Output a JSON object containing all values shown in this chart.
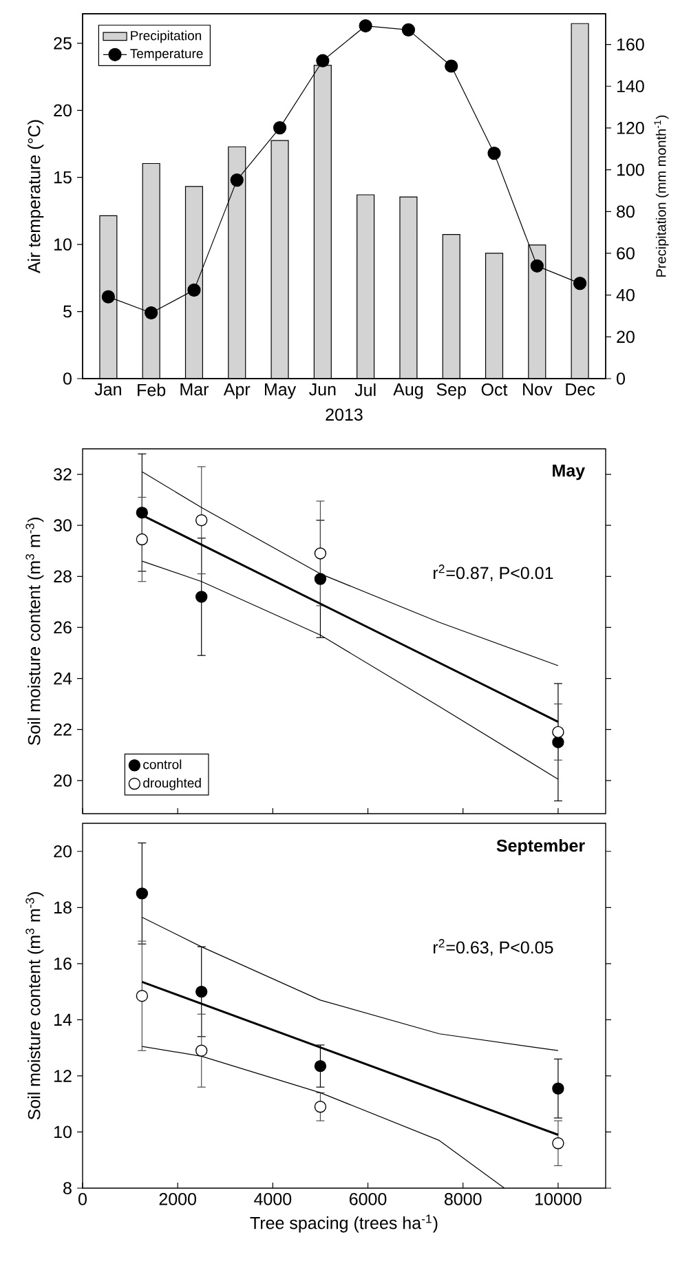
{
  "chart_data": [
    {
      "type": "bar",
      "xlabel": "2013",
      "ylabel": "Air temperature (°C)",
      "y2label": "Precipitation (mm month$^{-1}$)",
      "categories": [
        "Jan",
        "Feb",
        "Mar",
        "Apr",
        "May",
        "Jun",
        "Jul",
        "Aug",
        "Sep",
        "Oct",
        "Nov",
        "Dec"
      ],
      "series": [
        {
          "name": "Precipitation",
          "type": "bar",
          "axis": "y2",
          "color": "#d3d3d3",
          "values": [
            78,
            103,
            92,
            111,
            114,
            150,
            88,
            87,
            69,
            60,
            64,
            170
          ]
        },
        {
          "name": "Temperature",
          "type": "line",
          "color": "#000000",
          "marker": "circle",
          "values": [
            6.1,
            4.9,
            6.6,
            14.8,
            18.7,
            23.7,
            26.3,
            26.0,
            23.3,
            16.8,
            8.4,
            7.1
          ]
        }
      ],
      "ylim": [
        0,
        27.2
      ],
      "yticks": [
        0,
        5,
        10,
        15,
        20,
        25
      ],
      "y2lim": [
        0,
        174.7
      ],
      "y2ticks": [
        0,
        20,
        40,
        60,
        80,
        100,
        120,
        140,
        160
      ],
      "legend": "top left"
    },
    {
      "type": "scatter",
      "title": "May",
      "ylabel": "Soil moisture content (m$^{3}$ m$^{-3}$)",
      "annotations": [
        "r$^{2}$=0.87, P<0.01"
      ],
      "x": [
        1250,
        2500,
        5000,
        10000
      ],
      "series": [
        {
          "name": "control",
          "color": "#000000",
          "marker": "circle",
          "values": [
            30.5,
            27.2,
            27.9,
            21.5
          ],
          "errors": [
            2.3,
            2.3,
            2.3,
            2.3
          ]
        },
        {
          "name": "droughted",
          "color": "#ffffff",
          "marker": "circle",
          "values": [
            29.45,
            30.2,
            28.9,
            21.9
          ],
          "errors": [
            1.65,
            2.1,
            2.05,
            1.1
          ]
        },
        {
          "type": "line",
          "color": "#000000",
          "x": [
            1250,
            10000
          ],
          "values": [
            30.4,
            22.3
          ]
        },
        {
          "type": "line",
          "color": "#000000",
          "x": [
            1250,
            2500,
            5000,
            7500,
            10000
          ],
          "values": [
            32.1,
            30.7,
            28.1,
            26.2,
            24.5
          ]
        },
        {
          "type": "line",
          "color": "#000000",
          "x": [
            1250,
            2500,
            5000,
            7500,
            10000
          ],
          "values": [
            28.6,
            27.8,
            25.7,
            22.9,
            20.05
          ]
        }
      ],
      "xlim": [
        0,
        11000
      ],
      "xticks": [
        0,
        2000,
        4000,
        6000,
        8000,
        10000
      ],
      "ylim": [
        18.7,
        33.0
      ],
      "yticks": [
        20,
        22,
        24,
        26,
        28,
        30,
        32
      ],
      "tick_labels": "y",
      "legend": "bottom left"
    },
    {
      "type": "scatter",
      "title": "September",
      "xlabel": "Tree spacing (trees ha$^{-1}$)",
      "ylabel": "Soil moisture content (m$^{3}$ m$^{-3}$)",
      "annotations": [
        "r$^{2}$=0.63, P<0.05"
      ],
      "x": [
        1250,
        2500,
        5000,
        10000
      ],
      "series": [
        {
          "color": "#000000",
          "marker": "circle",
          "values": [
            18.5,
            15.0,
            12.35,
            11.55
          ],
          "errors": [
            1.8,
            1.6,
            0.75,
            1.05
          ]
        },
        {
          "color": "#ffffff",
          "marker": "circle",
          "values": [
            14.85,
            12.9,
            10.9,
            9.6
          ],
          "errors": [
            1.95,
            1.3,
            0.5,
            0.8
          ]
        },
        {
          "type": "line",
          "color": "#000000",
          "x": [
            1250,
            10000
          ],
          "values": [
            15.35,
            9.9
          ]
        },
        {
          "type": "line",
          "color": "#000000",
          "x": [
            1250,
            2500,
            5000,
            7500,
            10000
          ],
          "values": [
            17.65,
            16.6,
            14.7,
            13.5,
            12.9
          ]
        },
        {
          "type": "line",
          "color": "#000000",
          "x": [
            1250,
            2500,
            5000,
            7500,
            8870
          ],
          "values": [
            13.05,
            12.7,
            11.4,
            9.7,
            8.0
          ]
        }
      ],
      "xlim": [
        0,
        11000
      ],
      "xticks": [
        0,
        2000,
        4000,
        6000,
        8000,
        10000
      ],
      "ylim": [
        8,
        21
      ],
      "yticks": [
        8,
        10,
        12,
        14,
        16,
        18,
        20
      ]
    }
  ]
}
